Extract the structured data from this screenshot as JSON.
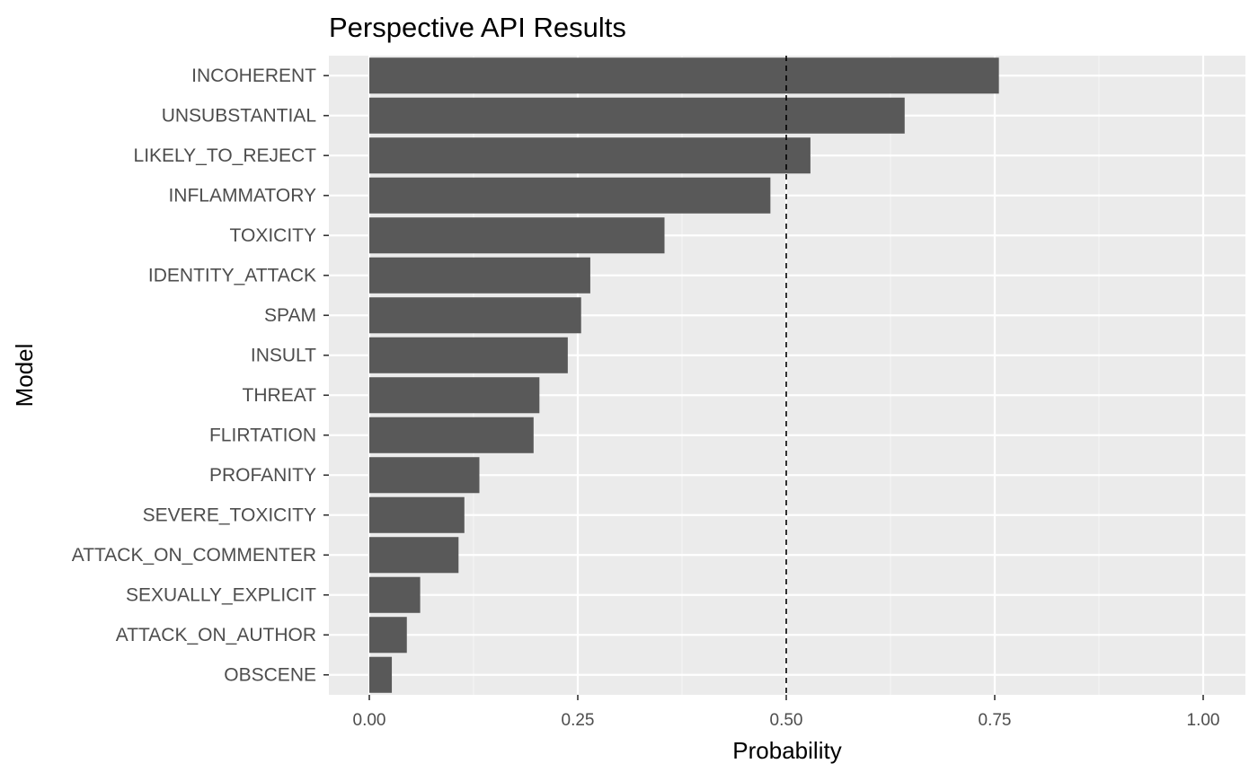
{
  "chart_data": {
    "type": "bar",
    "orientation": "horizontal",
    "title": "Perspective API Results",
    "xlabel": "Probability",
    "ylabel": "Model",
    "xlim": [
      0,
      1
    ],
    "xticks": [
      0,
      0.25,
      0.5,
      0.75,
      1
    ],
    "xtick_labels": [
      "0.00",
      "0.25",
      "0.50",
      "0.75",
      "1.00"
    ],
    "categories": [
      "INCOHERENT",
      "UNSUBSTANTIAL",
      "LIKELY_TO_REJECT",
      "INFLAMMATORY",
      "TOXICITY",
      "IDENTITY_ATTACK",
      "SPAM",
      "INSULT",
      "THREAT",
      "FLIRTATION",
      "PROFANITY",
      "SEVERE_TOXICITY",
      "ATTACK_ON_COMMENTER",
      "SEXUALLY_EXPLICIT",
      "ATTACK_ON_AUTHOR",
      "OBSCENE"
    ],
    "values": [
      0.755,
      0.642,
      0.529,
      0.481,
      0.354,
      0.265,
      0.254,
      0.238,
      0.204,
      0.197,
      0.132,
      0.114,
      0.107,
      0.061,
      0.045,
      0.027
    ],
    "reference_line": {
      "x": 0.5,
      "style": "dashed"
    },
    "grid": true,
    "legend": "none",
    "colors": {
      "bar": "#595959",
      "panel_background": "#ebebeb",
      "grid_major": "#ffffff",
      "grid_minor": "#f5f5f5",
      "reference_line": "#000000",
      "tick_label": "#4d4d4d",
      "axis_title": "#000000"
    }
  }
}
